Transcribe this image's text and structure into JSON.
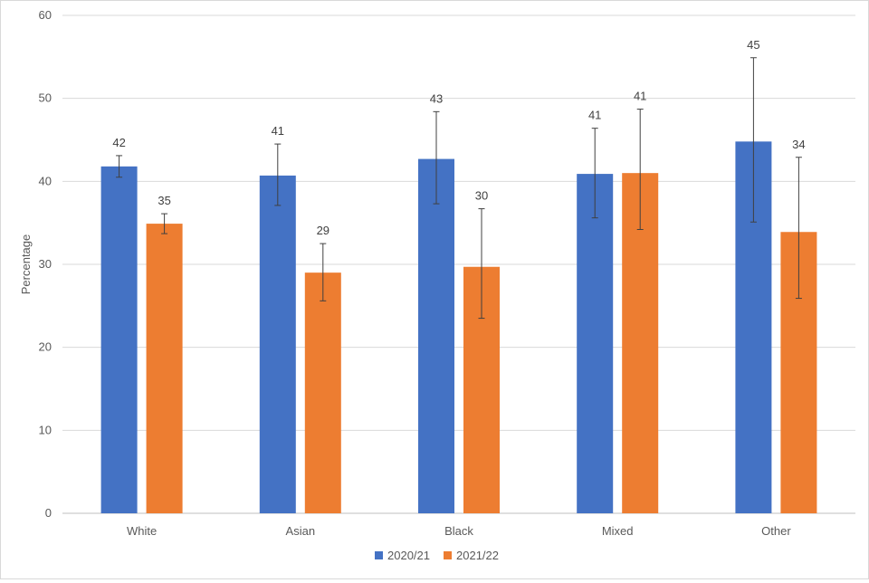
{
  "chart_data": {
    "type": "bar",
    "title": "",
    "xlabel": "",
    "ylabel": "Percentage",
    "ylim": [
      0,
      60
    ],
    "yticks": [
      0,
      10,
      20,
      30,
      40,
      50,
      60
    ],
    "grid": true,
    "legend_position": "bottom",
    "categories": [
      "White",
      "Asian",
      "Black",
      "Mixed",
      "Other"
    ],
    "series": [
      {
        "name": "2020/21",
        "color": "#4472C4",
        "values": [
          41.8,
          40.7,
          42.7,
          40.9,
          44.8
        ],
        "labels": [
          "42",
          "41",
          "43",
          "41",
          "45"
        ],
        "error_low": [
          40.5,
          37.1,
          37.3,
          35.6,
          35.1
        ],
        "error_high": [
          43.1,
          44.5,
          48.4,
          46.4,
          54.9
        ]
      },
      {
        "name": "2021/22",
        "color": "#ED7D31",
        "values": [
          34.9,
          29.0,
          29.7,
          41.0,
          33.9
        ],
        "labels": [
          "35",
          "29",
          "30",
          "41",
          "34"
        ],
        "error_low": [
          33.7,
          25.6,
          23.5,
          34.2,
          25.9
        ],
        "error_high": [
          36.1,
          32.5,
          36.7,
          48.7,
          42.9
        ]
      }
    ]
  }
}
